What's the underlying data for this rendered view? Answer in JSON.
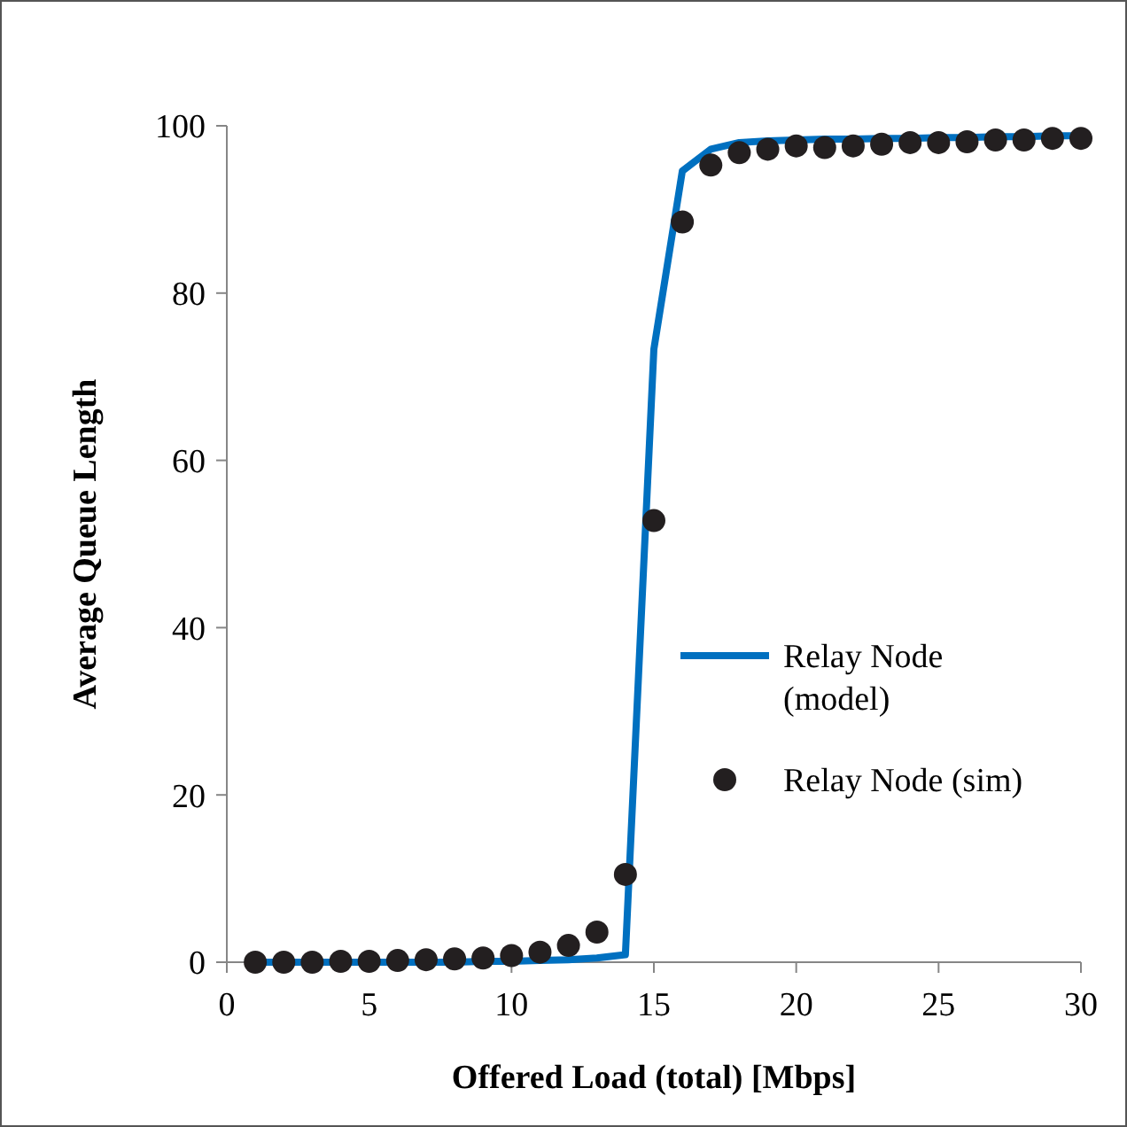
{
  "chart_data": {
    "type": "line",
    "xlabel": "Offered Load (total) [Mbps]",
    "ylabel": "Average Queue Length",
    "xlim": [
      0,
      30
    ],
    "xticks": [
      0,
      5,
      10,
      15,
      20,
      25,
      30
    ],
    "ylim": [
      0,
      100
    ],
    "yticks": [
      0,
      20,
      40,
      60,
      80,
      100
    ],
    "grid": false,
    "legend": "right",
    "series": [
      {
        "name": "Relay Node (model)",
        "color": "#0070c0",
        "line_style": "solid",
        "marker": "none",
        "x": [
          1,
          2,
          3,
          4,
          5,
          6,
          7,
          8,
          9,
          10,
          11,
          12,
          13,
          14,
          15,
          16,
          17,
          18,
          19,
          20,
          21,
          22,
          23,
          24,
          25,
          26,
          27,
          28,
          29,
          30
        ],
        "values": [
          0,
          0,
          0,
          0,
          0,
          0,
          0,
          0,
          0.1,
          0.1,
          0.2,
          0.3,
          0.5,
          0.9,
          73.3,
          94.6,
          97.2,
          98,
          98.2,
          98.3,
          98.4,
          98.4,
          98.5,
          98.5,
          98.6,
          98.6,
          98.7,
          98.7,
          98.8,
          98.8
        ]
      },
      {
        "name": "Relay Node (sim)",
        "type": "scatter",
        "color": "#231f20",
        "marker": "circle",
        "x": [
          1,
          2,
          3,
          4,
          5,
          6,
          7,
          8,
          9,
          10,
          11,
          12,
          13,
          14,
          15,
          16,
          17,
          18,
          19,
          20,
          21,
          22,
          23,
          24,
          25,
          26,
          27,
          28,
          29,
          30
        ],
        "values": [
          0,
          0,
          0,
          0.1,
          0.1,
          0.2,
          0.3,
          0.4,
          0.5,
          0.8,
          1.2,
          2,
          3.6,
          10.5,
          52.8,
          88.5,
          95.3,
          96.8,
          97.2,
          97.6,
          97.4,
          97.6,
          97.8,
          98,
          98,
          98.1,
          98.3,
          98.3,
          98.5,
          98.5
        ]
      }
    ]
  }
}
